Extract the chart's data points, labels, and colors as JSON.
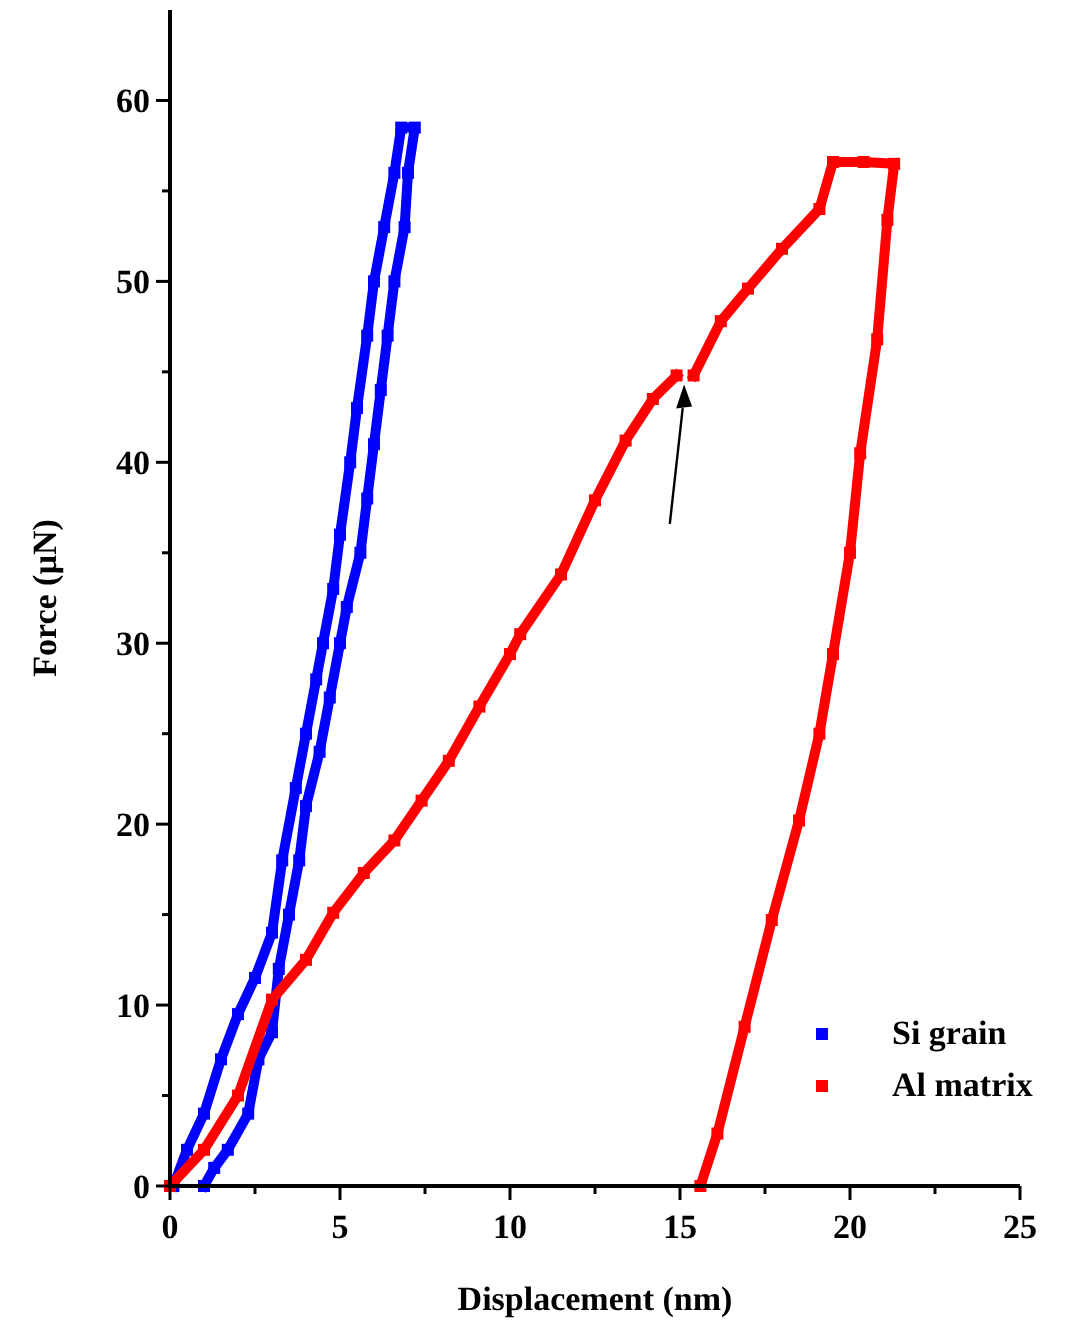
{
  "chart_data": {
    "type": "line",
    "xlabel": "Displacement (nm)",
    "ylabel": "Force (µN)",
    "xlim": [
      0,
      25
    ],
    "ylim": [
      0,
      65
    ],
    "xticks": [
      0,
      {
        "value": 2.5,
        "label": null
      },
      5,
      {
        "value": 7.5,
        "label": null
      },
      10,
      {
        "value": 12.5,
        "label": null
      },
      15,
      {
        "value": 17.5,
        "label": null
      },
      20,
      {
        "value": 22.5,
        "label": null
      },
      25
    ],
    "yticks": [
      0,
      {
        "value": 5,
        "label": null
      },
      10,
      {
        "value": 15,
        "label": null
      },
      20,
      {
        "value": 25,
        "label": null
      },
      30,
      {
        "value": 35,
        "label": null
      },
      40,
      {
        "value": 45,
        "label": null
      },
      50,
      {
        "value": 55,
        "label": null
      },
      60
    ],
    "marker": "square",
    "legend": "bottom right",
    "grid": false,
    "series": [
      {
        "name": "Si grain",
        "color": "#0000ff",
        "x": [
          0.1,
          0.5,
          1,
          1.5,
          2,
          2.5,
          3,
          3.3,
          3.7,
          4,
          4.3,
          4.5,
          4.8,
          5,
          5.3,
          5.5,
          5.8,
          6,
          6.3,
          6.6,
          6.8,
          7.2,
          7,
          6.9,
          6.6,
          6.4,
          6.2,
          6,
          5.8,
          5.6,
          5.2,
          5,
          4.7,
          4.4,
          4,
          3.8,
          3.5,
          3.2,
          3,
          2.6,
          2.3,
          1.7,
          1.3,
          1
        ],
        "values": [
          0,
          2,
          4,
          7,
          9.5,
          11.5,
          14,
          18,
          22,
          25,
          28,
          30,
          33,
          36,
          40,
          43,
          47,
          50,
          53,
          56,
          58.5,
          58.5,
          56,
          53,
          50,
          47,
          44,
          41,
          38,
          35,
          32,
          30,
          27,
          24,
          21,
          18,
          15,
          12,
          8.5,
          7,
          4,
          2,
          1,
          0
        ]
      },
      {
        "name": "Al matrix",
        "color": "#ff0000",
        "x": [
          0,
          1,
          2,
          3,
          4,
          4.8,
          5.7,
          6.6,
          7.4,
          8.2,
          9.1,
          10,
          10.3,
          11.5,
          12.5,
          13.4,
          14.2,
          14.9,
          null,
          15.4,
          16.2,
          17,
          18,
          19.1,
          19.5,
          20.4,
          21.3,
          21.1,
          20.8,
          20.3,
          20,
          19.5,
          19.1,
          18.5,
          17.7,
          16.9,
          16.1,
          15.6
        ],
        "values": [
          0,
          2,
          5,
          10.3,
          12.5,
          15.1,
          17.3,
          19.1,
          21.3,
          23.5,
          26.5,
          29.4,
          30.5,
          33.8,
          37.9,
          41.2,
          43.5,
          44.8,
          null,
          44.8,
          47.8,
          49.6,
          51.8,
          54,
          56.6,
          56.6,
          56.5,
          53.4,
          46.8,
          40.5,
          35,
          29.4,
          25,
          20.2,
          14.7,
          8.8,
          2.9,
          0
        ]
      }
    ]
  }
}
